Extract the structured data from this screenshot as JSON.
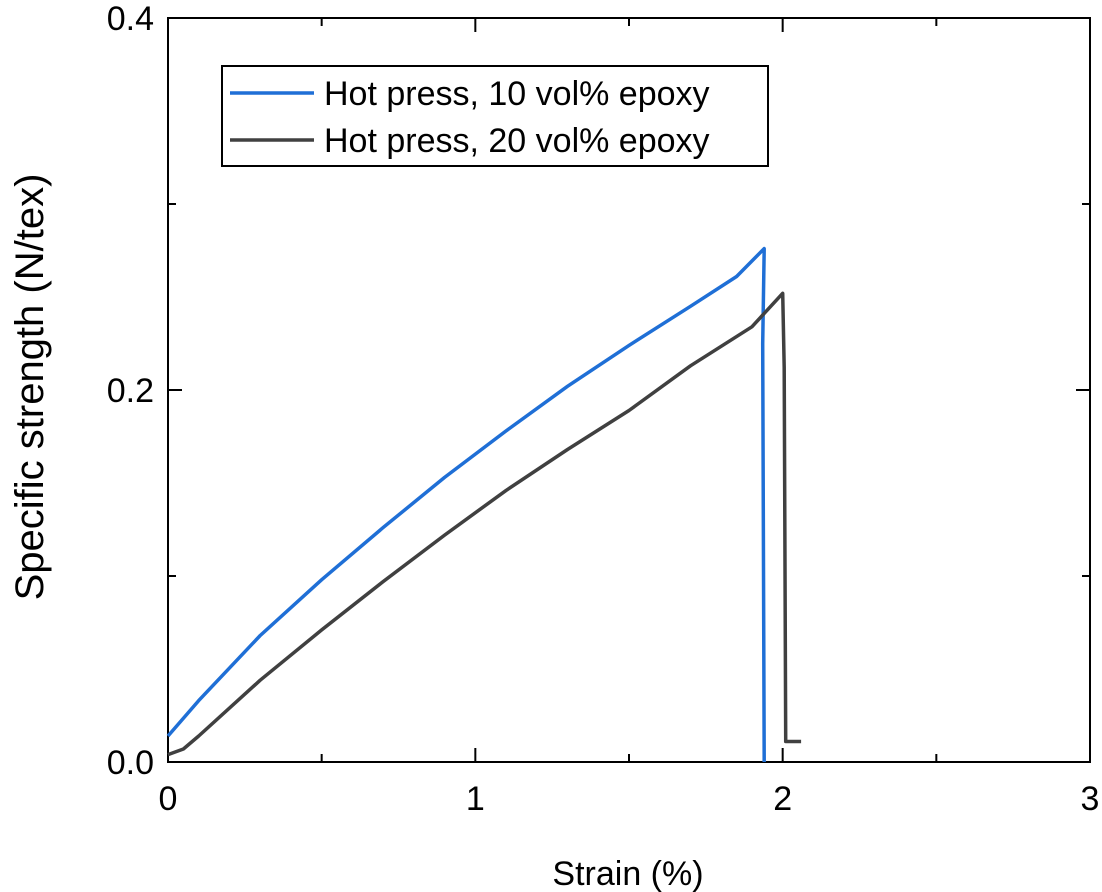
{
  "chart_data": {
    "type": "line",
    "title": "",
    "xlabel": "Strain (%)",
    "ylabel": "Specific strength (N/tex)",
    "xlim": [
      0,
      3
    ],
    "ylim": [
      0,
      0.4
    ],
    "x_ticks": [
      0,
      1,
      2,
      3
    ],
    "x_tick_labels": [
      "0",
      "1",
      "2",
      "3"
    ],
    "y_ticks": [
      0.0,
      0.2,
      0.4
    ],
    "y_tick_labels": [
      "0.0",
      "0.2",
      "0.4"
    ],
    "grid": false,
    "legend_position": "top-left",
    "series": [
      {
        "name": "Hot press, 10 vol% epoxy",
        "color": "#1f6fd6",
        "x": [
          0.0,
          0.1,
          0.3,
          0.5,
          0.7,
          0.9,
          1.1,
          1.3,
          1.5,
          1.7,
          1.85,
          1.94,
          1.935,
          1.94
        ],
        "y": [
          0.014,
          0.033,
          0.068,
          0.098,
          0.126,
          0.153,
          0.178,
          0.202,
          0.224,
          0.245,
          0.261,
          0.276,
          0.225,
          0.0
        ]
      },
      {
        "name": "Hot press, 20 vol% epoxy",
        "color": "#404040",
        "x": [
          0.0,
          0.05,
          0.1,
          0.3,
          0.5,
          0.7,
          0.9,
          1.1,
          1.3,
          1.5,
          1.7,
          1.9,
          2.0,
          2.005,
          2.01,
          2.01,
          2.06
        ],
        "y": [
          0.004,
          0.007,
          0.014,
          0.044,
          0.071,
          0.097,
          0.122,
          0.146,
          0.168,
          0.189,
          0.213,
          0.234,
          0.252,
          0.212,
          0.012,
          0.011,
          0.011
        ]
      }
    ]
  }
}
